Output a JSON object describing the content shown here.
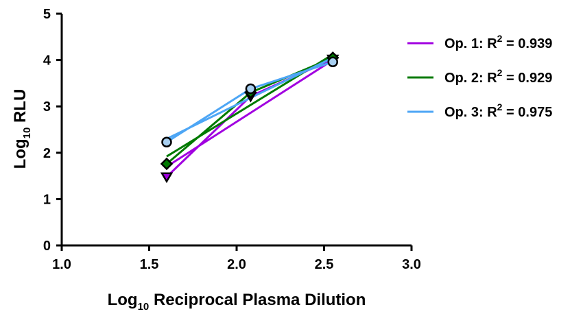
{
  "chart_data": {
    "type": "scatter",
    "xlabel": {
      "base": "Log",
      "sub": "10",
      "rest": " Reciprocal Plasma Dilution"
    },
    "ylabel": {
      "base": "Log",
      "sub": "10",
      "rest": " RLU"
    },
    "xlim": [
      1.0,
      3.0
    ],
    "ylim": [
      0,
      5
    ],
    "xticks": [
      "1.0",
      "1.5",
      "2.0",
      "2.5",
      "3.0"
    ],
    "yticks": [
      "0",
      "1",
      "2",
      "3",
      "4",
      "5"
    ],
    "grid": false,
    "legend_position": "right",
    "series": [
      {
        "name": {
          "pre": "Op. 1: R",
          "sup": "2",
          "post": " = 0.939"
        },
        "color": "#A100E0",
        "marker": "triangle-down",
        "marker_fill": "#A100E0",
        "x": [
          1.6,
          2.08,
          2.55
        ],
        "y": [
          1.48,
          3.22,
          4.02
        ],
        "fit": {
          "x": [
            1.6,
            2.55
          ],
          "y": [
            1.7,
            4.0
          ]
        }
      },
      {
        "name": {
          "pre": "Op. 2: R",
          "sup": "2",
          "post": " = 0.929"
        },
        "color": "#007A00",
        "marker": "diamond",
        "marker_fill": "#007A00",
        "x": [
          1.6,
          2.08,
          2.55
        ],
        "y": [
          1.76,
          3.3,
          4.05
        ],
        "fit": {
          "x": [
            1.6,
            2.55
          ],
          "y": [
            1.92,
            4.12
          ]
        }
      },
      {
        "name": {
          "pre": "Op. 3: R",
          "sup": "2",
          "post": " = 0.975"
        },
        "color": "#4DA6F5",
        "marker": "circle",
        "marker_fill": "#A8CFF0",
        "x": [
          1.6,
          2.08,
          2.55
        ],
        "y": [
          2.23,
          3.38,
          3.96
        ],
        "fit": {
          "x": [
            1.6,
            2.55
          ],
          "y": [
            2.3,
            4.05
          ]
        }
      }
    ]
  }
}
